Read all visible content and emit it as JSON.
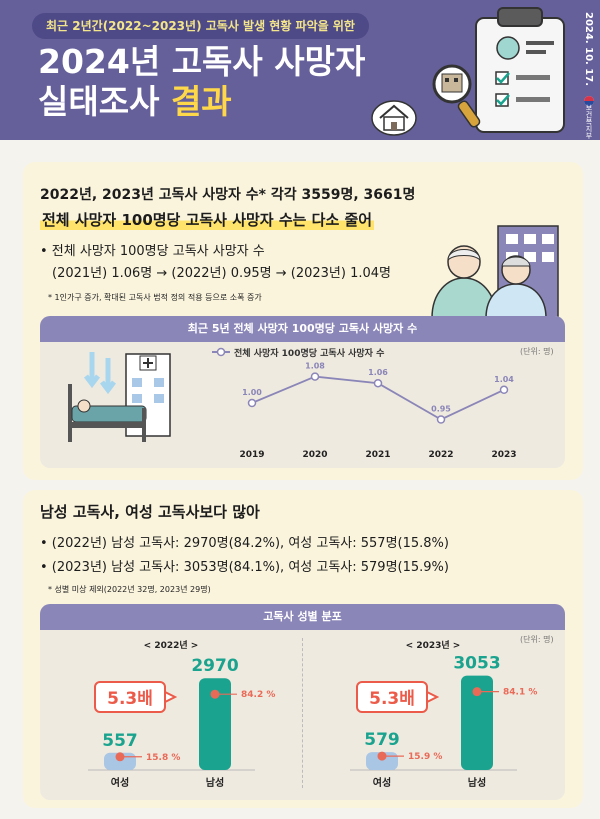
{
  "header": {
    "subtitle": "최근 2년간(2022~2023년) 고독사 발생 현황 파악을 위한",
    "title_line1": "2024년 고독사 사망자",
    "title_line2_a": "실태조사 ",
    "title_line2_b": "결과",
    "date": "2024. 10. 17.",
    "ministry": "보건복지부"
  },
  "section1": {
    "headline": "2022년, 2023년 고독사 사망자 수* 각각 3559명, 3661명",
    "subheadline": "전체 사망자 100명당 고독사 사망자 수는 다소 줄어",
    "bullet_title": "• 전체 사망자 100명당 고독사 사망자 수",
    "bullet_detail": "(2021년) 1.06명 → (2022년) 0.95명 → (2023년) 1.04명",
    "footnote": "* 1인가구 증가, 확대된 고독사 법적 정의 적용 등으로 소폭 증가",
    "chart_title": "최근 5년 전체 사망자 100명당 고독사 사망자 수",
    "unit": "(단위: 명)",
    "legend": "전체 사망자 100명당 고독사 사망자 수"
  },
  "section2": {
    "headline": "남성 고독사, 여성 고독사보다 많아",
    "bullet1": "• (2022년) 남성 고독사: 2970명(84.2%), 여성 고독사: 557명(15.8%)",
    "bullet2": "• (2023년) 남성 고독사: 3053명(84.1%), 여성 고독사: 579명(15.9%)",
    "footnote": "* 성별 미상 제외(2022년 32명, 2023년 29명)",
    "chart_title": "고독사 성별 분포",
    "unit": "(단위: 명)"
  },
  "colors": {
    "header": "#65609a",
    "accent": "#ffd84a",
    "line": "#8b86b8",
    "teal": "#1aa38e",
    "coral": "#ea6a58",
    "badge": "#ec5b49"
  },
  "chart_data": [
    {
      "type": "line",
      "title": "최근 5년 전체 사망자 100명당 고독사 사망자 수",
      "categories": [
        "2019",
        "2020",
        "2021",
        "2022",
        "2023"
      ],
      "series": [
        {
          "name": "전체 사망자 100명당 고독사 사망자 수",
          "values": [
            1.0,
            1.08,
            1.06,
            0.95,
            1.04
          ]
        }
      ],
      "labels": [
        "1.00",
        "1.08",
        "1.06",
        "0.95",
        "1.04"
      ],
      "ylim": [
        0.9,
        1.1
      ]
    },
    {
      "type": "bar",
      "title": "고독사 성별 분포",
      "groups": [
        {
          "name": "< 2022년 >",
          "categories": [
            "여성",
            "남성"
          ],
          "values": [
            557,
            2970
          ],
          "value_labels": [
            "557",
            "2970"
          ],
          "percent_labels": [
            "15.8 %",
            "84.2 %"
          ],
          "ratio": "5.3배"
        },
        {
          "name": "< 2023년 >",
          "categories": [
            "여성",
            "남성"
          ],
          "values": [
            579,
            3053
          ],
          "value_labels": [
            "579",
            "3053"
          ],
          "percent_labels": [
            "15.9 %",
            "84.1 %"
          ],
          "ratio": "5.3배"
        }
      ],
      "ylim": [
        0,
        3300
      ]
    }
  ]
}
